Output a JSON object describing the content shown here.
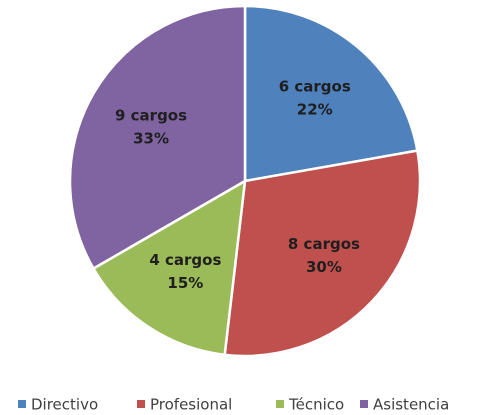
{
  "chart_data": {
    "type": "pie",
    "categories": [
      "Directivo",
      "Profesional",
      "Técnico",
      "Asistencia"
    ],
    "values": [
      6,
      8,
      4,
      9
    ],
    "value_labels": [
      "6 cargos",
      "8 cargos",
      "4 cargos",
      "9 cargos"
    ],
    "percent_labels": [
      "22%",
      "30%",
      "15%",
      "33%"
    ],
    "colors": [
      "#4f81bd",
      "#c0504d",
      "#9bbb59",
      "#8064a2"
    ],
    "legend": "bottom"
  }
}
